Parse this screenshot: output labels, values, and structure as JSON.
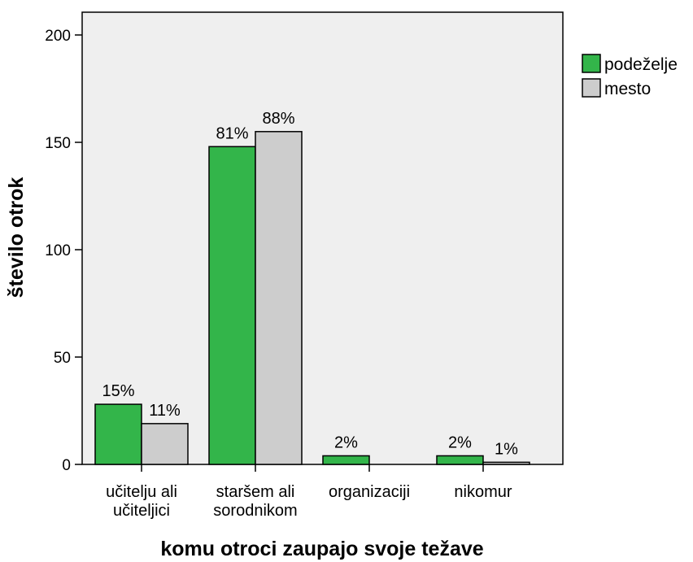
{
  "chart_data": {
    "type": "bar",
    "xlabel": "komu otroci zaupajo svoje težave",
    "ylabel": "število otrok",
    "ylim": [
      0,
      210
    ],
    "yticks": [
      0,
      50,
      100,
      150,
      200
    ],
    "categories": [
      [
        "učitelju ali",
        "učiteljici"
      ],
      [
        "staršem ali",
        "sorodnikom"
      ],
      [
        "organizaciji"
      ],
      [
        "nikomur"
      ]
    ],
    "series": [
      {
        "name": "podeželje",
        "color": "#33b54a",
        "values": [
          28,
          148,
          4,
          4
        ],
        "labels": [
          "15%",
          "81%",
          "2%",
          "2%"
        ]
      },
      {
        "name": "mesto",
        "color": "#cdcdcd",
        "values": [
          19,
          155,
          0,
          1
        ],
        "labels": [
          "11%",
          "88%",
          "",
          "1%"
        ]
      }
    ],
    "legend_position": "right",
    "grid": false,
    "plot_background": "#efefef"
  }
}
